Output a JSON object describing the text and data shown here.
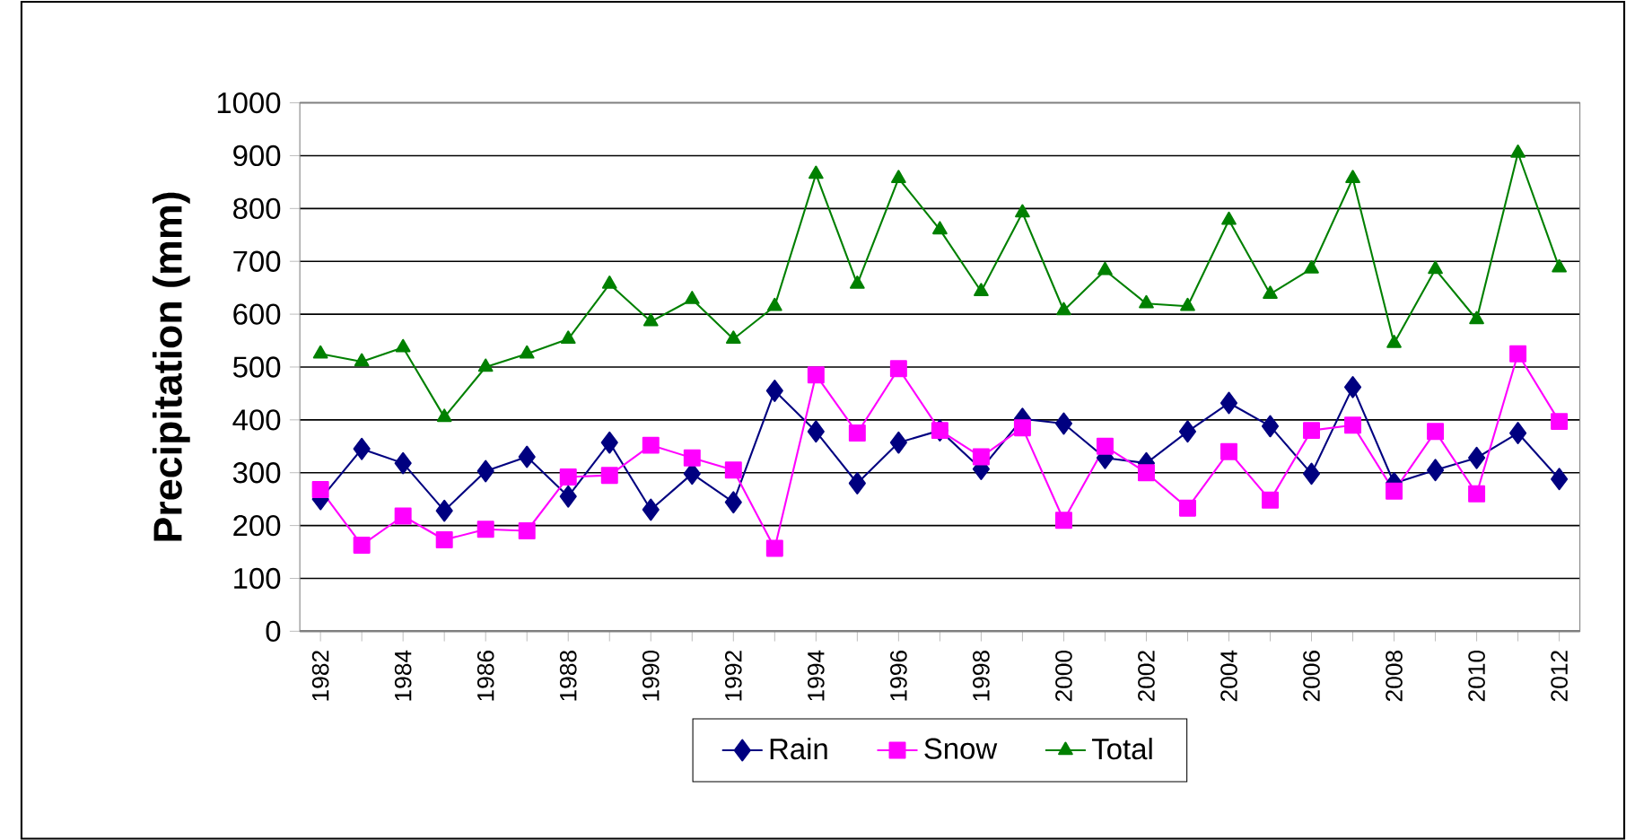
{
  "chart_data": {
    "type": "line",
    "ylabel": "Precipitation (mm)",
    "categories": [
      "1982",
      null,
      "1984",
      null,
      "1986",
      null,
      "1988",
      null,
      "1990",
      null,
      "1992",
      null,
      "1994",
      null,
      "1996",
      null,
      "1998",
      null,
      "2000",
      null,
      "2002",
      null,
      "2004",
      null,
      "2006",
      null,
      "2008",
      null,
      "2010",
      null,
      "2012"
    ],
    "series": [
      {
        "name": "Rain",
        "color": "#000080",
        "marker": "diamond",
        "values": [
          250,
          345,
          318,
          228,
          303,
          330,
          255,
          357,
          230,
          298,
          244,
          455,
          378,
          280,
          357,
          380,
          307,
          402,
          393,
          328,
          318,
          378,
          432,
          388,
          298,
          462,
          280,
          305,
          328,
          375,
          288
        ]
      },
      {
        "name": "Snow",
        "color": "#ff00ff",
        "marker": "square",
        "values": [
          268,
          163,
          218,
          173,
          193,
          190,
          292,
          295,
          352,
          328,
          305,
          157,
          485,
          375,
          497,
          380,
          330,
          385,
          210,
          350,
          300,
          233,
          340,
          248,
          380,
          390,
          265,
          378,
          260,
          525,
          397
        ]
      },
      {
        "name": "Total",
        "color": "#008000",
        "marker": "triangle",
        "values": [
          525,
          510,
          537,
          405,
          500,
          525,
          553,
          657,
          586,
          628,
          553,
          615,
          865,
          657,
          857,
          760,
          643,
          792,
          607,
          683,
          620,
          615,
          778,
          638,
          686,
          857,
          545,
          685,
          590,
          905,
          688
        ]
      }
    ],
    "ylim": [
      0,
      1000
    ],
    "yticks": [
      0,
      100,
      200,
      300,
      400,
      500,
      600,
      700,
      800,
      900,
      1000
    ],
    "grid": "y",
    "legend": "bottom",
    "line_style": "solid"
  }
}
